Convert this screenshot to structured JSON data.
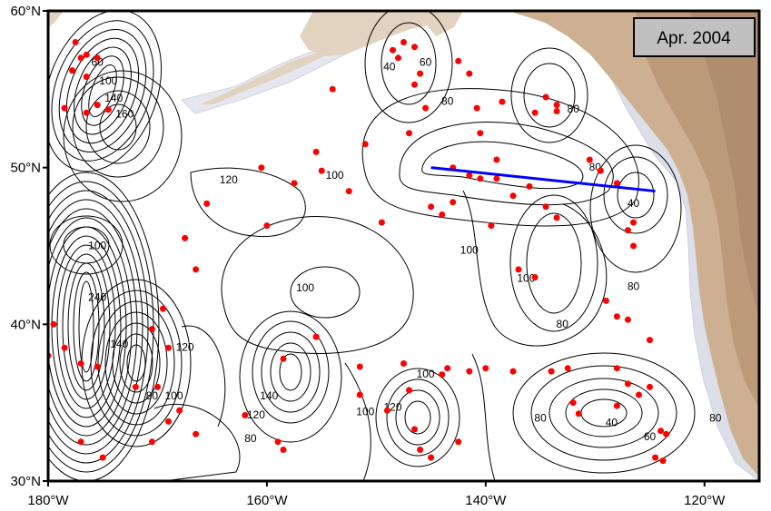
{
  "title_box": "Apr. 2004",
  "axes": {
    "x_ticks": [
      {
        "lon": -180,
        "label": "180°W"
      },
      {
        "lon": -160,
        "label": "160°W"
      },
      {
        "lon": -140,
        "label": "140°W"
      },
      {
        "lon": -120,
        "label": "120°W"
      }
    ],
    "y_ticks": [
      {
        "lat": 30,
        "label": "30°N"
      },
      {
        "lat": 40,
        "label": "40°N"
      },
      {
        "lat": 50,
        "label": "50°N"
      },
      {
        "lat": 60,
        "label": "60°N"
      }
    ],
    "lon_range": [
      -180,
      -115
    ],
    "lat_range": [
      30,
      60
    ]
  },
  "colors": {
    "land": "#c9ab8c",
    "land_light": "#e3d3c1",
    "shelf": "#d9dbe6",
    "contour": "#000000",
    "stations": "#ff0000",
    "section_line": "#0000ff",
    "label_box": "#c0c0c0"
  },
  "section_line": {
    "start": [
      -145,
      50
    ],
    "end": [
      -124.5,
      48.5
    ]
  },
  "contour_labels": [
    {
      "text": "60",
      "lon": -175.5,
      "lat": 56.5
    },
    {
      "text": "100",
      "lon": -174.5,
      "lat": 55.3
    },
    {
      "text": "140",
      "lon": -174.0,
      "lat": 54.2
    },
    {
      "text": "160",
      "lon": -173.0,
      "lat": 53.2
    },
    {
      "text": "40",
      "lon": -148.8,
      "lat": 56.2
    },
    {
      "text": "60",
      "lon": -145.5,
      "lat": 56.5
    },
    {
      "text": "80",
      "lon": -143.5,
      "lat": 54.0
    },
    {
      "text": "80",
      "lon": -132.0,
      "lat": 53.5
    },
    {
      "text": "80",
      "lon": -130.0,
      "lat": 49.8
    },
    {
      "text": "40",
      "lon": -126.5,
      "lat": 47.5
    },
    {
      "text": "120",
      "lon": -163.5,
      "lat": 49.0
    },
    {
      "text": "100",
      "lon": -153.8,
      "lat": 49.3
    },
    {
      "text": "100",
      "lon": -141.5,
      "lat": 44.5
    },
    {
      "text": "100",
      "lon": -136.3,
      "lat": 42.7
    },
    {
      "text": "100",
      "lon": -156.5,
      "lat": 42.1
    },
    {
      "text": "80",
      "lon": -133.0,
      "lat": 39.8
    },
    {
      "text": "80",
      "lon": -126.5,
      "lat": 42.2
    },
    {
      "text": "100",
      "lon": -175.5,
      "lat": 44.8
    },
    {
      "text": "240",
      "lon": -175.5,
      "lat": 41.5
    },
    {
      "text": "140",
      "lon": -173.5,
      "lat": 38.5
    },
    {
      "text": "120",
      "lon": -167.5,
      "lat": 38.3
    },
    {
      "text": "100",
      "lon": -168.5,
      "lat": 35.2
    },
    {
      "text": "80",
      "lon": -170.5,
      "lat": 35.2
    },
    {
      "text": "140",
      "lon": -159.8,
      "lat": 35.2
    },
    {
      "text": "120",
      "lon": -161.0,
      "lat": 34.0
    },
    {
      "text": "80",
      "lon": -161.5,
      "lat": 32.5
    },
    {
      "text": "100",
      "lon": -145.5,
      "lat": 36.6
    },
    {
      "text": "120",
      "lon": -148.5,
      "lat": 34.5
    },
    {
      "text": "100",
      "lon": -151.0,
      "lat": 34.2
    },
    {
      "text": "80",
      "lon": -135.0,
      "lat": 33.8
    },
    {
      "text": "40",
      "lon": -128.5,
      "lat": 33.5
    },
    {
      "text": "60",
      "lon": -125.0,
      "lat": 32.6
    },
    {
      "text": "80",
      "lon": -119.0,
      "lat": 33.8
    }
  ],
  "stations": [
    [
      -177.5,
      58
    ],
    [
      -177,
      57
    ],
    [
      -176.5,
      57.2
    ],
    [
      -175.5,
      57
    ],
    [
      -177.8,
      56.2
    ],
    [
      -176.5,
      55.8
    ],
    [
      -178.5,
      53.8
    ],
    [
      -176.5,
      53.5
    ],
    [
      -175.5,
      54
    ],
    [
      -174.5,
      53.7
    ],
    [
      -148.5,
      57.5
    ],
    [
      -147.5,
      58
    ],
    [
      -146.5,
      57.7
    ],
    [
      -146.5,
      55.3
    ],
    [
      -148,
      57
    ],
    [
      -146,
      56
    ],
    [
      -154,
      55
    ],
    [
      -145.5,
      53.8
    ],
    [
      -142.5,
      56.8
    ],
    [
      -141.5,
      56
    ],
    [
      -138.5,
      54.2
    ],
    [
      -140.8,
      53.8
    ],
    [
      -134.5,
      54.5
    ],
    [
      -133.5,
      54
    ],
    [
      -133.5,
      53.6
    ],
    [
      -135.5,
      53.5
    ],
    [
      -147,
      52.2
    ],
    [
      -140.5,
      52.2
    ],
    [
      -151,
      51.5
    ],
    [
      -155.5,
      51
    ],
    [
      -143,
      50
    ],
    [
      -139,
      50.5
    ],
    [
      -140.5,
      49.3
    ],
    [
      -139,
      49.3
    ],
    [
      -136,
      48.8
    ],
    [
      -137.5,
      48.2
    ],
    [
      -141.5,
      49.5
    ],
    [
      -130.5,
      50.5
    ],
    [
      -129.5,
      49.8
    ],
    [
      -128,
      49
    ],
    [
      -160.5,
      50
    ],
    [
      -157.5,
      49
    ],
    [
      -160,
      46.3
    ],
    [
      -165.5,
      47.7
    ],
    [
      -155,
      49.8
    ],
    [
      -152.5,
      48.5
    ],
    [
      -149.5,
      46.5
    ],
    [
      -145,
      47.5
    ],
    [
      -144,
      47
    ],
    [
      -143,
      47.8
    ],
    [
      -139.5,
      46.3
    ],
    [
      -134.5,
      47.5
    ],
    [
      -133.5,
      46.8
    ],
    [
      -127,
      46
    ],
    [
      -126.5,
      45
    ],
    [
      -126.5,
      46.5
    ],
    [
      -167.5,
      45.5
    ],
    [
      -166.5,
      43.5
    ],
    [
      -137,
      43.5
    ],
    [
      -135.5,
      43
    ],
    [
      -129,
      41.5
    ],
    [
      -128,
      40.5
    ],
    [
      -127,
      40.3
    ],
    [
      -125,
      39
    ],
    [
      -169.5,
      41
    ],
    [
      -170.5,
      39.7
    ],
    [
      -169,
      38.5
    ],
    [
      -155.5,
      39.2
    ],
    [
      -158.5,
      37.8
    ],
    [
      -151.5,
      37.3
    ],
    [
      -147.5,
      37.5
    ],
    [
      -144,
      36.8
    ],
    [
      -143.5,
      37.2
    ],
    [
      -141.5,
      37
    ],
    [
      -140,
      37.2
    ],
    [
      -137.5,
      37
    ],
    [
      -134,
      37
    ],
    [
      -132.5,
      37.2
    ],
    [
      -128,
      37.2
    ],
    [
      -127,
      36.2
    ],
    [
      -125,
      36
    ],
    [
      -132,
      35
    ],
    [
      -131.5,
      34.3
    ],
    [
      -128,
      34.8
    ],
    [
      -126,
      35.5
    ],
    [
      -124,
      33.2
    ],
    [
      -123.5,
      33
    ],
    [
      -151.5,
      35.5
    ],
    [
      -147,
      35.8
    ],
    [
      -149,
      34.5
    ],
    [
      -146.5,
      33.3
    ],
    [
      -146,
      32
    ],
    [
      -145,
      31.5
    ],
    [
      -142.5,
      32.5
    ],
    [
      -162,
      34.2
    ],
    [
      -159,
      32.5
    ],
    [
      -158.5,
      32
    ],
    [
      -168,
      34.5
    ],
    [
      -169,
      33.8
    ],
    [
      -166.5,
      33
    ],
    [
      -170.5,
      32.5
    ],
    [
      -175,
      31.5
    ],
    [
      -172,
      36
    ],
    [
      -170,
      36
    ],
    [
      -177,
      37.5
    ],
    [
      -175.5,
      37.3
    ],
    [
      -178.5,
      38.5
    ],
    [
      -179.5,
      40
    ],
    [
      -180,
      38
    ],
    [
      -177,
      32.5
    ],
    [
      -124.5,
      31.5
    ],
    [
      -123.8,
      31.3
    ]
  ]
}
